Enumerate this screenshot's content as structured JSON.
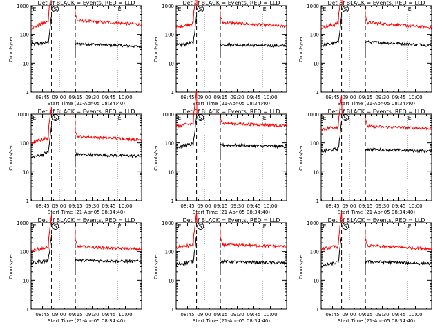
{
  "chart_data": [
    {
      "title": "Det 1f BLACK = Events, RED = LLD",
      "type": "line",
      "log_y": true,
      "ylim": [
        1,
        1000
      ],
      "ylabel": "Counts/sec",
      "xlabel": "Start Time (21-Apr-05 08:34:40)",
      "xticks": [
        "08:45",
        "09:00",
        "09:15",
        "09:30",
        "09:45",
        "10:00"
      ],
      "yticks": [
        "1",
        "10",
        "100",
        "1000"
      ],
      "markers": [
        "E",
        "S",
        "E"
      ],
      "series": [
        {
          "name": "Events",
          "color": "#000000",
          "base": [
            45,
            55
          ],
          "after": [
            48,
            38
          ]
        },
        {
          "name": "LLD",
          "color": "#ff0000",
          "base": [
            160,
            300
          ],
          "after": [
            300,
            220
          ]
        }
      ]
    },
    {
      "title": "Det 2f BLACK = Events, RED = LLD",
      "type": "line",
      "log_y": true,
      "ylim": [
        1,
        1000
      ],
      "ylabel": "Counts/sec",
      "xlabel": "Start Time (21-Apr-05 08:34:40)",
      "xticks": [
        "08:45",
        "09:00",
        "09:15",
        "09:30",
        "09:45",
        "10:00"
      ],
      "yticks": [
        "1",
        "10",
        "100",
        "1000"
      ],
      "markers": [
        "E",
        "S",
        "E"
      ],
      "series": [
        {
          "name": "Events",
          "color": "#000000",
          "base": [
            40,
            55
          ],
          "after": [
            45,
            40
          ]
        },
        {
          "name": "LLD",
          "color": "#ff0000",
          "base": [
            170,
            260
          ],
          "after": [
            260,
            190
          ]
        }
      ]
    },
    {
      "title": "Det 3f BLACK = Events, RED = LLD",
      "type": "line",
      "log_y": true,
      "ylim": [
        1,
        1000
      ],
      "ylabel": "Counts/sec",
      "xlabel": "Start Time (21-Apr-05 08:34:40)",
      "xticks": [
        "08:45",
        "09:00",
        "09:15",
        "09:30",
        "09:45",
        "10:00"
      ],
      "yticks": [
        "1",
        "10",
        "100",
        "1000"
      ],
      "markers": [
        "E",
        "S",
        "E"
      ],
      "series": [
        {
          "name": "Events",
          "color": "#000000",
          "base": [
            40,
            55
          ],
          "after": [
            55,
            42
          ]
        },
        {
          "name": "LLD",
          "color": "#ff0000",
          "base": [
            170,
            250
          ],
          "after": [
            260,
            170
          ]
        }
      ]
    },
    {
      "title": "Det 4f BLACK = Events, RED = LLD",
      "type": "line",
      "log_y": true,
      "ylim": [
        1,
        1000
      ],
      "ylabel": "Counts/sec",
      "xlabel": "Start Time (21-Apr-05 08:34:40)",
      "xticks": [
        "08:45",
        "09:00",
        "09:15",
        "09:30",
        "09:45",
        "10:00"
      ],
      "yticks": [
        "1",
        "10",
        "100",
        "1000"
      ],
      "markers": [
        "E",
        "S",
        "E"
      ],
      "series": [
        {
          "name": "Events",
          "color": "#000000",
          "base": [
            30,
            50
          ],
          "after": [
            40,
            35
          ]
        },
        {
          "name": "LLD",
          "color": "#ff0000",
          "base": [
            100,
            160
          ],
          "after": [
            170,
            130
          ]
        }
      ]
    },
    {
      "title": "Det 5f BLACK = Events, RED = LLD",
      "type": "line",
      "log_y": true,
      "ylim": [
        1,
        1000
      ],
      "ylabel": "Counts/sec",
      "xlabel": "Start Time (21-Apr-05 08:34:40)",
      "xticks": [
        "08:45",
        "09:00",
        "09:15",
        "09:30",
        "09:45",
        "10:00"
      ],
      "yticks": [
        "1",
        "10",
        "100",
        "1000"
      ],
      "markers": [
        "E",
        "S",
        "E"
      ],
      "series": [
        {
          "name": "Events",
          "color": "#000000",
          "base": [
            70,
            95
          ],
          "after": [
            85,
            75
          ]
        },
        {
          "name": "LLD",
          "color": "#ff0000",
          "base": [
            380,
            480
          ],
          "after": [
            480,
            400
          ]
        }
      ]
    },
    {
      "title": "Det 6f BLACK = Events, RED = LLD",
      "type": "line",
      "log_y": true,
      "ylim": [
        1,
        1000
      ],
      "ylabel": "Counts/sec",
      "xlabel": "Start Time (21-Apr-05 08:34:40)",
      "xticks": [
        "08:45",
        "09:00",
        "09:15",
        "09:30",
        "09:45",
        "10:00"
      ],
      "yticks": [
        "1",
        "10",
        "100",
        "1000"
      ],
      "markers": [
        "E",
        "S",
        "E"
      ],
      "series": [
        {
          "name": "Events",
          "color": "#000000",
          "base": [
            50,
            65
          ],
          "after": [
            60,
            52
          ]
        },
        {
          "name": "LLD",
          "color": "#ff0000",
          "base": [
            300,
            380
          ],
          "after": [
            380,
            320
          ]
        }
      ]
    },
    {
      "title": "Det 7f BLACK = Events, RED = LLD",
      "type": "line",
      "log_y": true,
      "ylim": [
        1,
        1000
      ],
      "ylabel": "Counts/sec",
      "xlabel": "Start Time (21-Apr-05 08:34:40)",
      "xticks": [
        "08:45",
        "09:00",
        "09:15",
        "09:30",
        "09:45",
        "10:00"
      ],
      "yticks": [
        "1",
        "10",
        "100",
        "1000"
      ],
      "markers": [
        "E",
        "S",
        "E"
      ],
      "series": [
        {
          "name": "Events",
          "color": "#000000",
          "base": [
            40,
            50
          ],
          "after": [
            50,
            45
          ]
        },
        {
          "name": "LLD",
          "color": "#ff0000",
          "base": [
            110,
            140
          ],
          "after": [
            150,
            120
          ]
        }
      ]
    },
    {
      "title": "Det 8f BLACK = Events, RED = LLD",
      "type": "line",
      "log_y": true,
      "ylim": [
        1,
        1000
      ],
      "ylabel": "Counts/sec",
      "xlabel": "Start Time (21-Apr-05 08:34:40)",
      "xticks": [
        "08:45",
        "09:00",
        "09:15",
        "09:30",
        "09:45",
        "10:00"
      ],
      "yticks": [
        "1",
        "10",
        "100",
        "1000"
      ],
      "markers": [
        "E",
        "S",
        "E"
      ],
      "series": [
        {
          "name": "Events",
          "color": "#000000",
          "base": [
            35,
            48
          ],
          "after": [
            45,
            40
          ]
        },
        {
          "name": "LLD",
          "color": "#ff0000",
          "base": [
            140,
            170
          ],
          "after": [
            175,
            150
          ]
        }
      ]
    },
    {
      "title": "Det 9f BLACK = Events, RED = LLD",
      "type": "line",
      "log_y": true,
      "ylim": [
        1,
        1000
      ],
      "ylabel": "Counts/sec",
      "xlabel": "Start Time (21-Apr-05 08:34:40)",
      "xticks": [
        "08:45",
        "09:00",
        "09:15",
        "09:30",
        "09:45",
        "10:00"
      ],
      "yticks": [
        "1",
        "10",
        "100",
        "1000"
      ],
      "markers": [
        "E",
        "S",
        "E"
      ],
      "series": [
        {
          "name": "Events",
          "color": "#000000",
          "base": [
            30,
            45
          ],
          "after": [
            45,
            38
          ]
        },
        {
          "name": "LLD",
          "color": "#ff0000",
          "base": [
            120,
            160
          ],
          "after": [
            160,
            125
          ]
        }
      ]
    }
  ]
}
